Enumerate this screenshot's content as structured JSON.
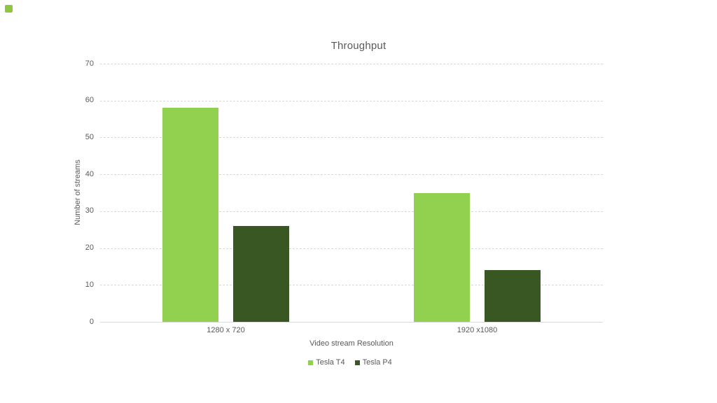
{
  "page": {
    "background": "#ffffff",
    "corner_marker_color": "#8DC63F"
  },
  "chart_data": {
    "type": "bar",
    "title": "Throughput",
    "categories": [
      "1280 x 720",
      "1920 x1080"
    ],
    "series": [
      {
        "name": "Tesla T4",
        "color": "#92D050",
        "values": [
          58,
          35
        ]
      },
      {
        "name": "Tesla P4",
        "color": "#385723",
        "values": [
          26,
          14
        ]
      }
    ],
    "xlabel": "Video stream Resolution",
    "ylabel": "Number of streams",
    "ylim": [
      0,
      70
    ],
    "ytick_step": 10,
    "grid": true,
    "legend_position": "bottom",
    "text_color": "#595959",
    "gridline_color": "#d9d9d9"
  }
}
